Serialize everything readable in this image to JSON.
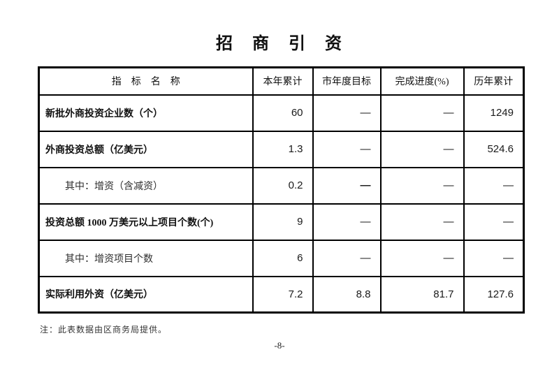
{
  "page": {
    "title": "招　商　引　资",
    "note": "注：此表数据由区商务局提供。",
    "page_number": "-8-"
  },
  "table": {
    "headers": [
      "指　标　名　称",
      "本年累计",
      "市年度目标",
      "完成进度(%)",
      "历年累计"
    ],
    "rows": [
      {
        "label": "新批外商投资企业数（个）",
        "bold": true,
        "indent": false,
        "values": [
          "60",
          "—",
          "—",
          "1249"
        ],
        "bold_cells": []
      },
      {
        "label": "外商投资总额（亿美元）",
        "bold": true,
        "indent": false,
        "values": [
          "1.3",
          "—",
          "—",
          "524.6"
        ],
        "bold_cells": []
      },
      {
        "label": "其中：增资（含减资）",
        "bold": false,
        "indent": true,
        "values": [
          "0.2",
          "—",
          "—",
          "—"
        ],
        "bold_cells": [
          1
        ]
      },
      {
        "label": "投资总额 1000 万美元以上项目个数(个)",
        "bold": true,
        "indent": false,
        "values": [
          "9",
          "—",
          "—",
          "—"
        ],
        "bold_cells": []
      },
      {
        "label": "其中：增资项目个数",
        "bold": false,
        "indent": true,
        "values": [
          "6",
          "—",
          "—",
          "—"
        ],
        "bold_cells": []
      },
      {
        "label": "实际利用外资（亿美元）",
        "bold": true,
        "indent": false,
        "values": [
          "7.2",
          "8.8",
          "81.7",
          "127.6"
        ],
        "bold_cells": []
      }
    ]
  }
}
